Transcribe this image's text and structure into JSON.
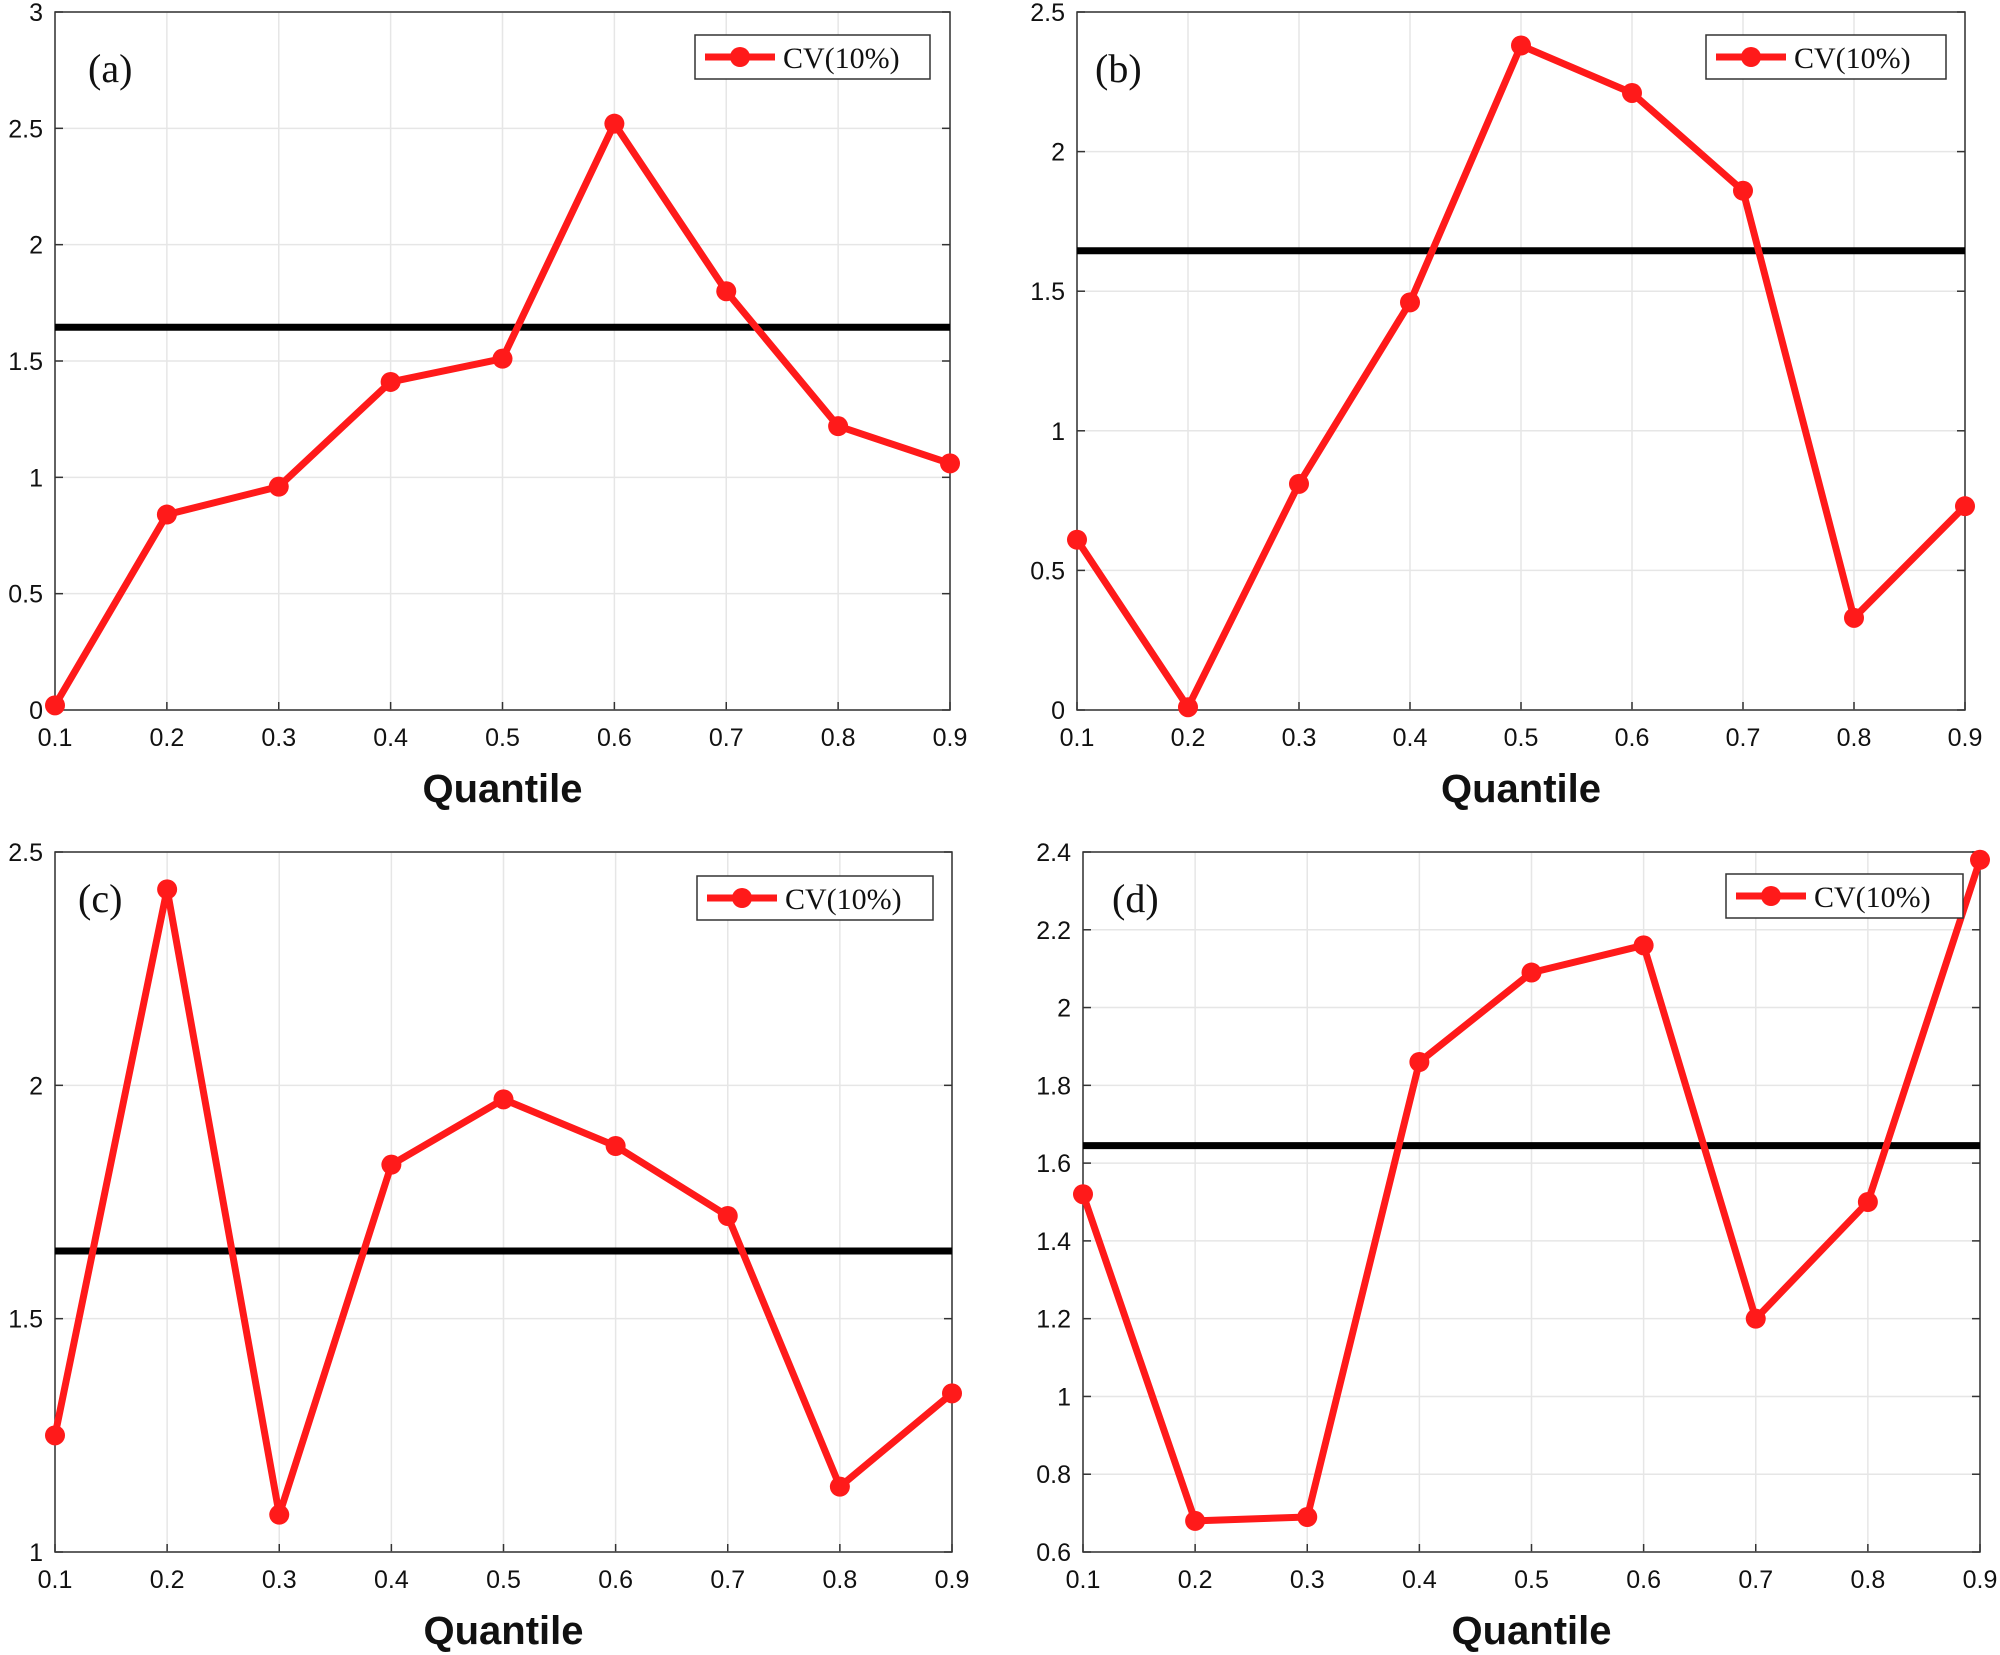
{
  "figure": {
    "line_color": "#ff1a1a",
    "threshold_color": "#000000",
    "grid_color": "#e6e6e6"
  },
  "chart_data": [
    {
      "type": "line",
      "panel_label": "(a)",
      "xlabel": "Quantile",
      "ylabel": "",
      "legend": "CV(10%)",
      "legend_position": "top-right",
      "grid": true,
      "x": [
        0.1,
        0.2,
        0.3,
        0.4,
        0.5,
        0.6,
        0.7,
        0.8,
        0.9
      ],
      "values": [
        0.02,
        0.84,
        0.96,
        1.41,
        1.51,
        2.52,
        1.8,
        1.22,
        1.06
      ],
      "threshold": 1.645,
      "xlim": [
        0.1,
        0.9
      ],
      "ylim": [
        0,
        3
      ],
      "xticks": [
        "0.1",
        "0.2",
        "0.3",
        "0.4",
        "0.5",
        "0.6",
        "0.7",
        "0.8",
        "0.9"
      ],
      "yticks": [
        "0",
        "0.5",
        "1",
        "1.5",
        "2",
        "2.5",
        "3"
      ]
    },
    {
      "type": "line",
      "panel_label": "(b)",
      "xlabel": "Quantile",
      "ylabel": "",
      "legend": "CV(10%)",
      "legend_position": "top-right",
      "grid": true,
      "x": [
        0.1,
        0.2,
        0.3,
        0.4,
        0.5,
        0.6,
        0.7,
        0.8,
        0.9
      ],
      "values": [
        0.61,
        0.01,
        0.81,
        1.46,
        2.38,
        2.21,
        1.86,
        0.33,
        0.73
      ],
      "threshold": 1.645,
      "xlim": [
        0.1,
        0.9
      ],
      "ylim": [
        0,
        2.5
      ],
      "xticks": [
        "0.1",
        "0.2",
        "0.3",
        "0.4",
        "0.5",
        "0.6",
        "0.7",
        "0.8",
        "0.9"
      ],
      "yticks": [
        "0",
        "0.5",
        "1",
        "1.5",
        "2",
        "2.5"
      ]
    },
    {
      "type": "line",
      "panel_label": "(c)",
      "xlabel": "Quantile",
      "ylabel": "",
      "legend": "CV(10%)",
      "legend_position": "top-right",
      "grid": true,
      "x": [
        0.1,
        0.2,
        0.3,
        0.4,
        0.5,
        0.6,
        0.7,
        0.8,
        0.9
      ],
      "values": [
        1.25,
        2.42,
        1.08,
        1.83,
        1.97,
        1.87,
        1.72,
        1.14,
        1.34
      ],
      "threshold": 1.645,
      "xlim": [
        0.1,
        0.9
      ],
      "ylim": [
        1,
        2.5
      ],
      "xticks": [
        "0.1",
        "0.2",
        "0.3",
        "0.4",
        "0.5",
        "0.6",
        "0.7",
        "0.8",
        "0.9"
      ],
      "yticks": [
        "1",
        "1.5",
        "2",
        "2.5"
      ]
    },
    {
      "type": "line",
      "panel_label": "(d)",
      "xlabel": "Quantile",
      "ylabel": "",
      "legend": "CV(10%)",
      "legend_position": "top-right",
      "grid": true,
      "x": [
        0.1,
        0.2,
        0.3,
        0.4,
        0.5,
        0.6,
        0.7,
        0.8,
        0.9
      ],
      "values": [
        1.52,
        0.68,
        0.69,
        1.86,
        2.09,
        2.16,
        1.2,
        1.5,
        2.38
      ],
      "threshold": 1.645,
      "xlim": [
        0.1,
        0.9
      ],
      "ylim": [
        0.6,
        2.4
      ],
      "xticks": [
        "0.1",
        "0.2",
        "0.3",
        "0.4",
        "0.5",
        "0.6",
        "0.7",
        "0.8",
        "0.9"
      ],
      "yticks": [
        "0.6",
        "0.8",
        "1",
        "1.2",
        "1.4",
        "1.6",
        "1.8",
        "2",
        "2.2",
        "2.4"
      ]
    }
  ]
}
